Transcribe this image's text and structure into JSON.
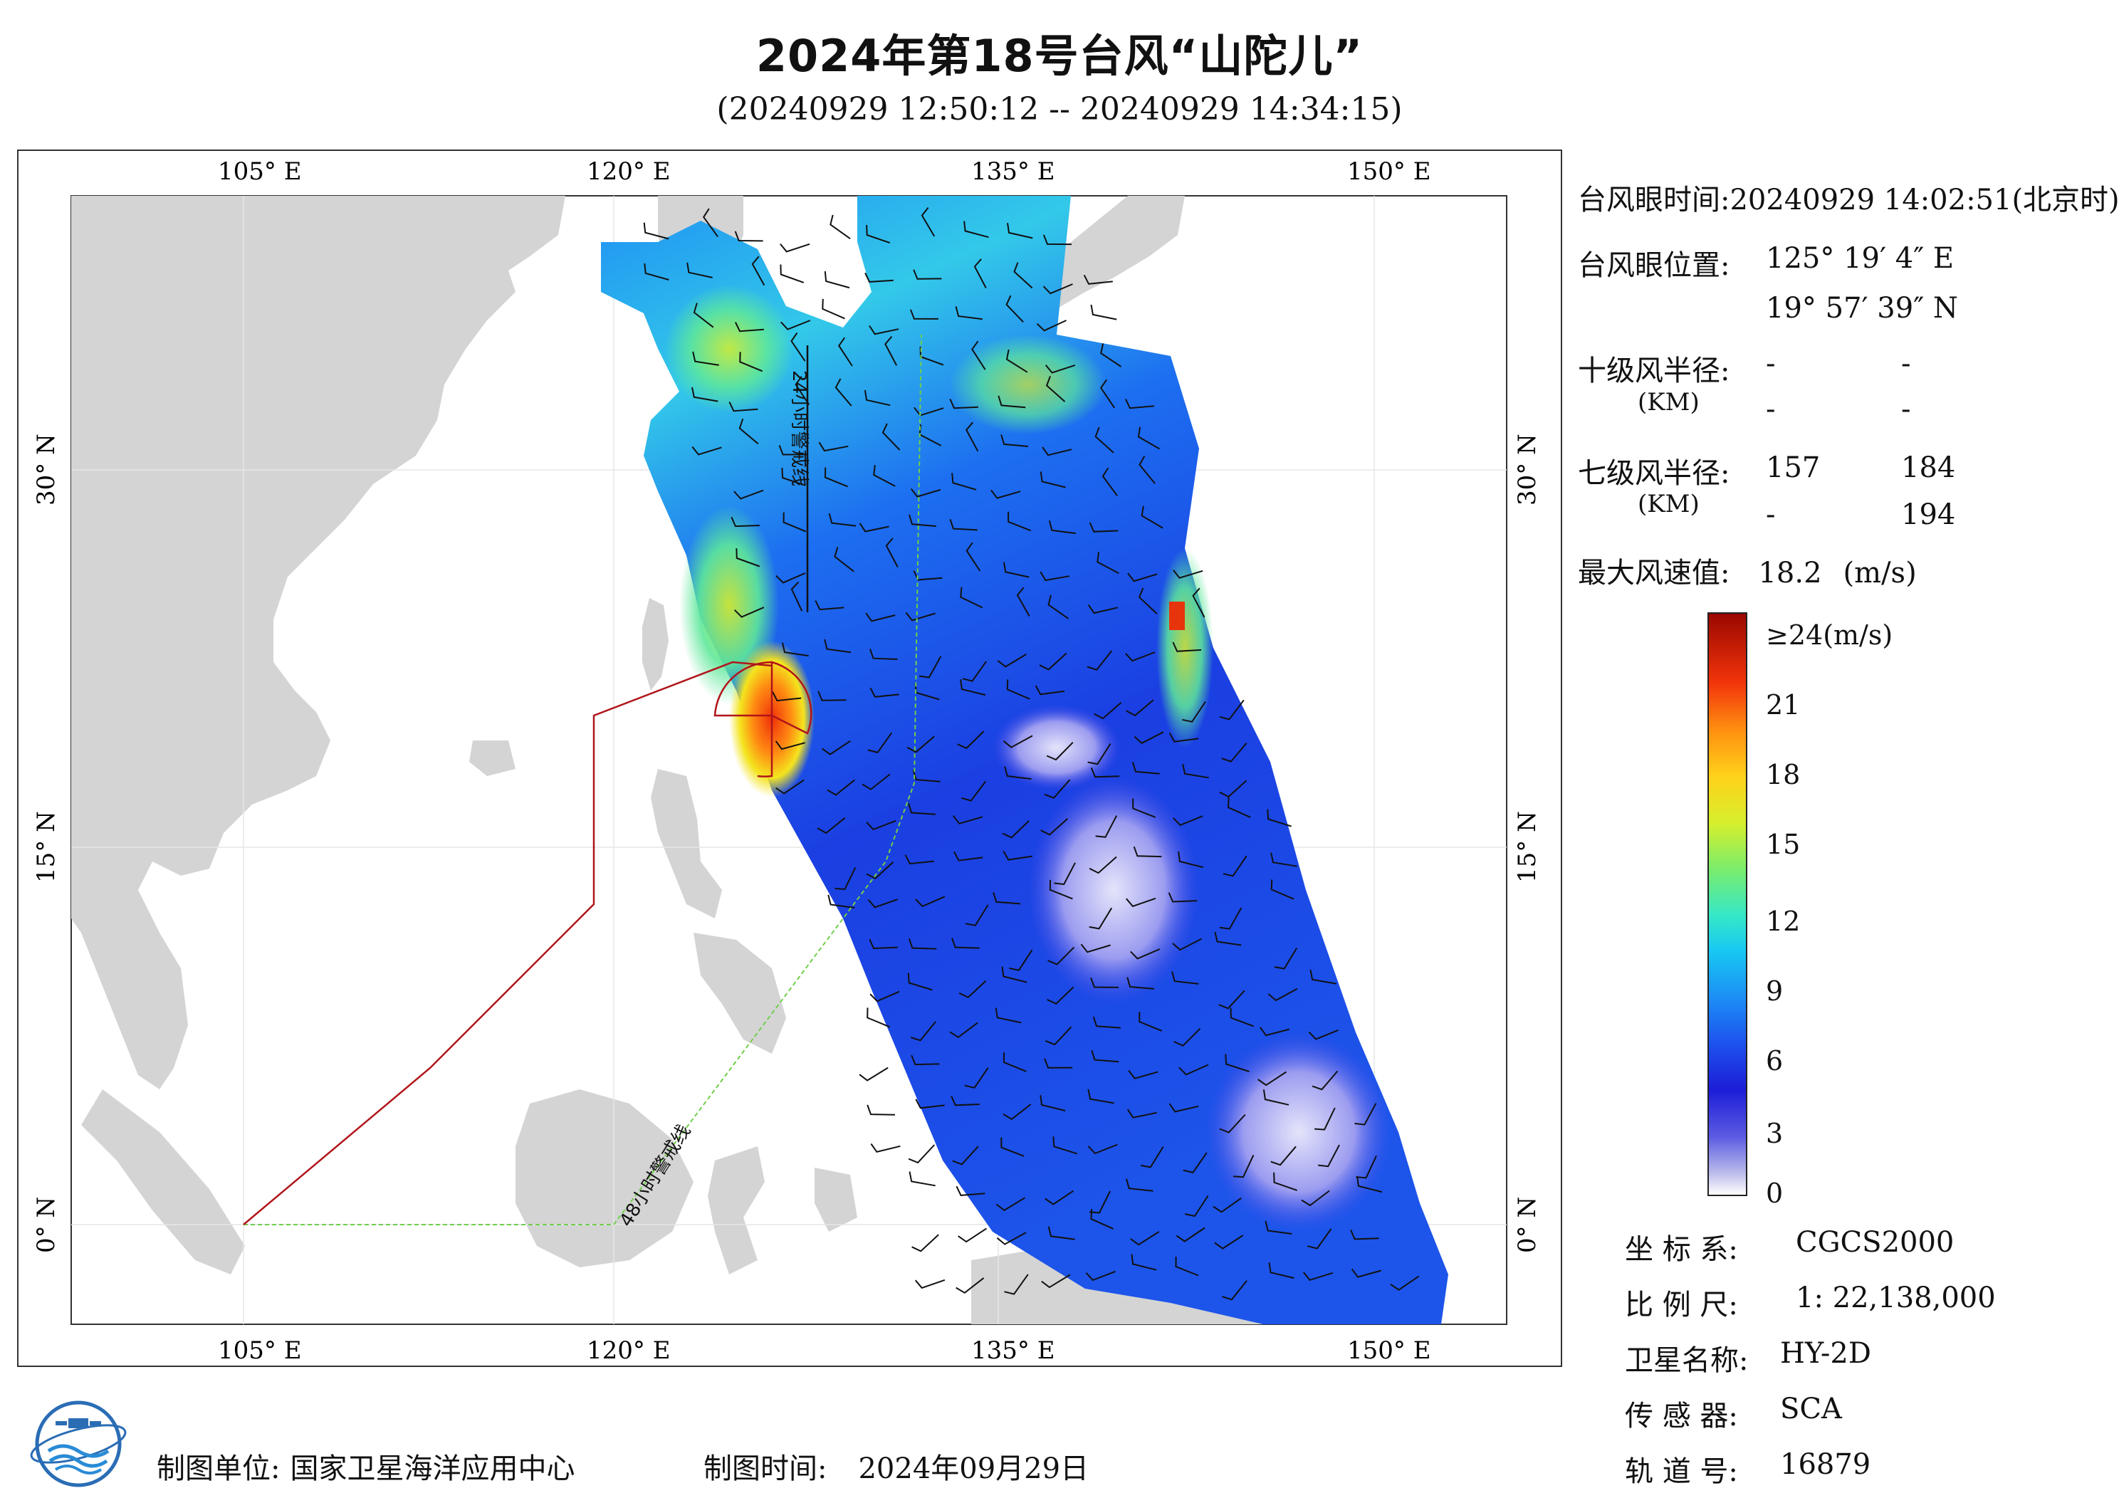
{
  "header": {
    "title": "2024年第18号台风“山陀儿”",
    "subtitle": "(20240929 12:50:12 -- 20240929 14:34:15)"
  },
  "map": {
    "lon_ticks": [
      "105° E",
      "120° E",
      "135° E",
      "150° E"
    ],
    "lat_ticks": [
      "30° N",
      "15° N",
      "0° N"
    ],
    "line_24h_label": "24小时警戒线",
    "line_48h_label": "48小时警戒线",
    "colors": {
      "land": "#d4d4d4",
      "sea": "#ffffff",
      "warning_24h": "#111111",
      "warning_48h": "#6fcf4a",
      "track": "#b0151a"
    }
  },
  "info": {
    "eye_time_label": "台风眼时间:",
    "eye_time_value": "20240929 14:02:51(北京时)",
    "eye_pos_label": "台风眼位置:",
    "eye_lon": "125° 19′ 4″ E",
    "eye_lat": "19° 57′ 39″ N",
    "r10_label": "十级风半径:",
    "r10_unit": "(KM)",
    "r10_values": [
      "-",
      "-",
      "-",
      "-"
    ],
    "r7_label": "七级风半径:",
    "r7_unit": "(KM)",
    "r7_values": [
      "157",
      "184",
      "-",
      "194"
    ],
    "max_wind_label": "最大风速值:",
    "max_wind_value": "18.2",
    "max_wind_unit": "(m/s)"
  },
  "colorbar": {
    "top_label": "≥24(m/s)",
    "labels": [
      "21",
      "18",
      "15",
      "12",
      "9",
      "6",
      "3",
      "0"
    ]
  },
  "meta": {
    "crs_label": "坐 标 系:",
    "crs_value": "CGCS2000",
    "scale_label": "比 例 尺:",
    "scale_value": "1: 22,138,000",
    "sat_label": "卫星名称:",
    "sat_value": "HY-2D",
    "sensor_label": "传 感 器:",
    "sensor_value": "SCA",
    "orbit_label": "轨 道 号:",
    "orbit_value": "16879"
  },
  "footer": {
    "org_label": "制图单位:",
    "org_value": "国家卫星海洋应用中心",
    "date_label": "制图时间:",
    "date_value": "2024年09月29日"
  }
}
